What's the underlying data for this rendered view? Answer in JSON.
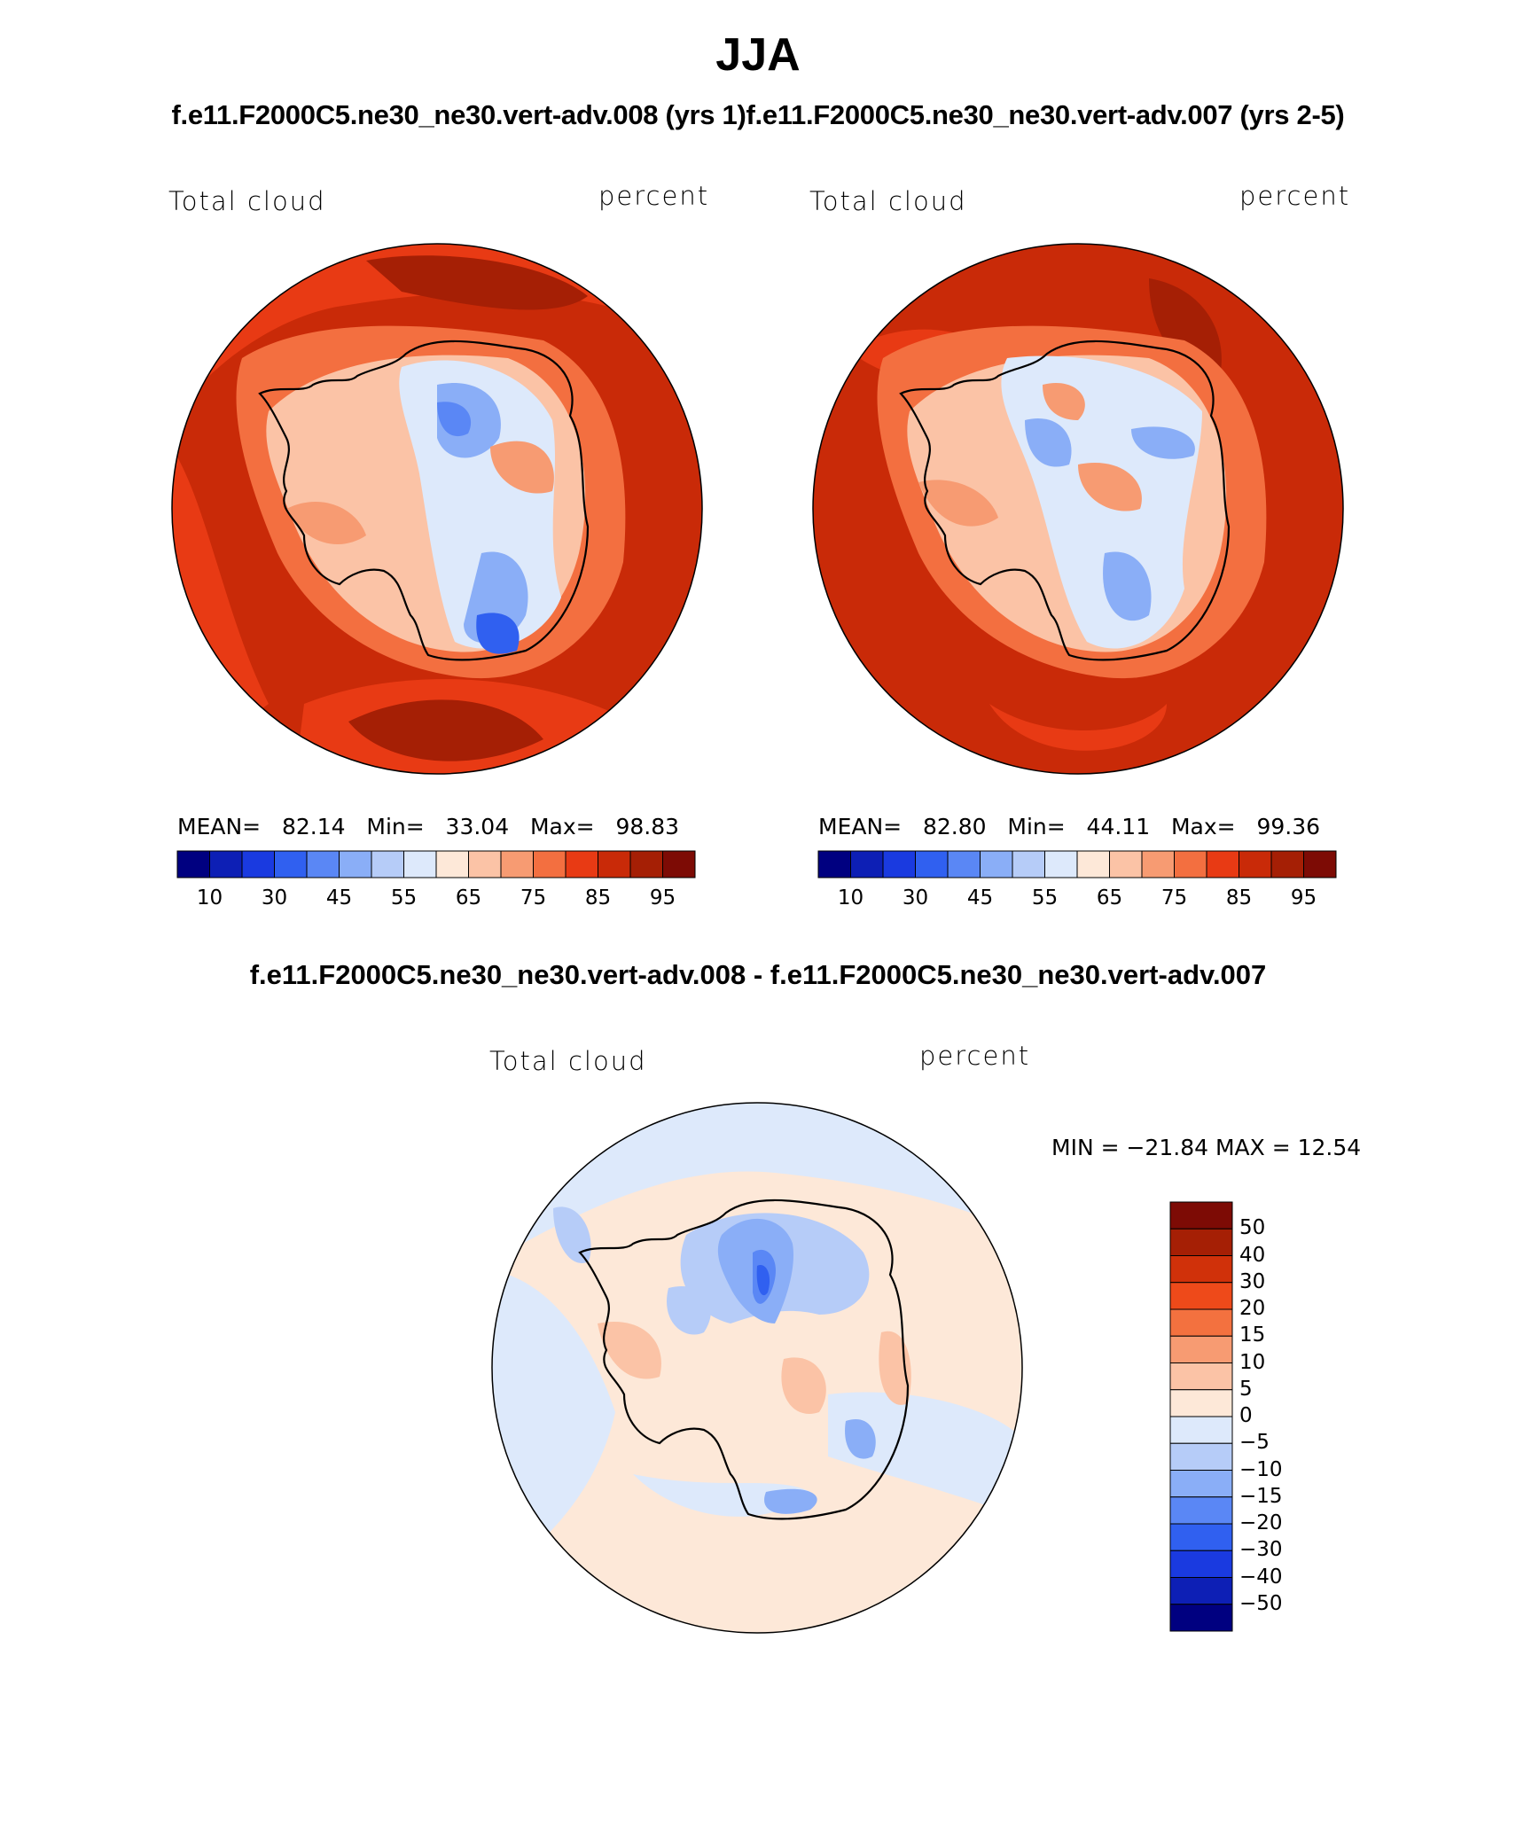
{
  "title": "JJA",
  "subtitle": "f.e11.F2000C5.ne30_ne30.vert-adv.008 (yrs 1)f.e11.F2000C5.ne30_ne30.vert-adv.007 (yrs 2-5)",
  "diff_title": "f.e11.F2000C5.ne30_ne30.vert-adv.008 - f.e11.F2000C5.ne30_ne30.vert-adv.007",
  "panels": [
    {
      "variable": "Total cloud",
      "units": "percent",
      "mean_label": "MEAN=",
      "mean": "82.14",
      "min_label": "Min=",
      "min": "33.04",
      "max_label": "Max=",
      "max": "98.83"
    },
    {
      "variable": "Total cloud",
      "units": "percent",
      "mean_label": "MEAN=",
      "mean": "82.80",
      "min_label": "Min=",
      "min": "44.11",
      "max_label": "Max=",
      "max": "99.36"
    }
  ],
  "diff_panel": {
    "variable": "Total cloud",
    "units": "percent",
    "minmax_text": "MIN = −21.84 MAX =   12.54"
  },
  "chart_data": [
    {
      "type": "heatmap",
      "projection": "south polar stereographic",
      "title": "Total cloud",
      "units": "percent",
      "mean": 82.14,
      "min": 33.04,
      "max": 98.83,
      "colorbar_ticks": [
        "10",
        "30",
        "45",
        "55",
        "65",
        "75",
        "85",
        "95"
      ],
      "colors": [
        "#000080",
        "#0d1fb5",
        "#1a3ae0",
        "#3060f0",
        "#5a87f5",
        "#8aaef7",
        "#b6ccf8",
        "#dde9fb",
        "#fde8d8",
        "#fbc3a6",
        "#f79b72",
        "#f36f40",
        "#e83a14",
        "#c92a08",
        "#a51f05",
        "#7d0b05"
      ]
    },
    {
      "type": "heatmap",
      "projection": "south polar stereographic",
      "title": "Total cloud",
      "units": "percent",
      "mean": 82.8,
      "min": 44.11,
      "max": 99.36,
      "colorbar_ticks": [
        "10",
        "30",
        "45",
        "55",
        "65",
        "75",
        "85",
        "95"
      ],
      "colors": [
        "#000080",
        "#0d1fb5",
        "#1a3ae0",
        "#3060f0",
        "#5a87f5",
        "#8aaef7",
        "#b6ccf8",
        "#dde9fb",
        "#fde8d8",
        "#fbc3a6",
        "#f79b72",
        "#f36f40",
        "#e83a14",
        "#c92a08",
        "#a51f05",
        "#7d0b05"
      ]
    },
    {
      "type": "heatmap",
      "projection": "south polar stereographic",
      "title": "Total cloud",
      "units": "percent",
      "min": -21.84,
      "max": 12.54,
      "colorbar_ticks": [
        "50",
        "40",
        "30",
        "20",
        "15",
        "10",
        "5",
        "0",
        "−5",
        "−10",
        "−15",
        "−20",
        "−30",
        "−40",
        "−50"
      ],
      "colors": [
        "#7d0b05",
        "#a51f05",
        "#d0310a",
        "#ee4a1a",
        "#f3713f",
        "#f79b72",
        "#fbc3a6",
        "#fde8d8",
        "#dde9fb",
        "#b6ccf8",
        "#8aaef7",
        "#5a87f5",
        "#3060f0",
        "#1a3ae0",
        "#0d1fb5",
        "#000080"
      ]
    }
  ]
}
